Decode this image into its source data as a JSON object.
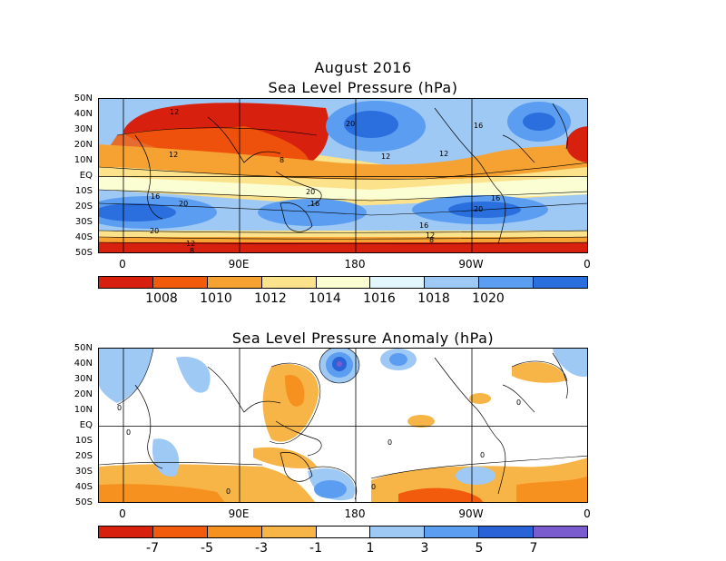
{
  "figure": {
    "title": "August 2016"
  },
  "panels": [
    {
      "id": "slp",
      "title": "Sea Level Pressure (hPa)",
      "lat_labels": [
        "50N",
        "40N",
        "30N",
        "20N",
        "10N",
        "EQ",
        "10S",
        "20S",
        "30S",
        "40S",
        "50S"
      ],
      "lon_labels": [
        "0",
        "90E",
        "180",
        "90W",
        "0"
      ],
      "colorbar": {
        "colors": [
          "#d7200d",
          "#f25a0c",
          "#f6a233",
          "#fde28c",
          "#fbfdd2",
          "#e2f7fd",
          "#9ec9f5",
          "#5b9df0",
          "#2a6fdd"
        ],
        "labels": [
          "1008",
          "1010",
          "1012",
          "1014",
          "1016",
          "1018",
          "1020"
        ]
      },
      "contour_labels": [
        "12",
        "20",
        "12",
        "12",
        "16",
        "8",
        "12",
        "16",
        "20",
        "16",
        "20",
        "20",
        "16",
        "12",
        "8",
        "20",
        "16",
        "12",
        "8"
      ]
    },
    {
      "id": "anom",
      "title": "Sea Level Pressure Anomaly (hPa)",
      "lat_labels": [
        "50N",
        "40N",
        "30N",
        "20N",
        "10N",
        "EQ",
        "10S",
        "20S",
        "30S",
        "40S",
        "50S"
      ],
      "lon_labels": [
        "0",
        "90E",
        "180",
        "90W",
        "0"
      ],
      "colorbar": {
        "colors": [
          "#d7200d",
          "#f25a0c",
          "#f6901e",
          "#f8b547",
          "#ffffff",
          "#9ec9f5",
          "#5b9df0",
          "#2a62d8",
          "#7a5ccf"
        ],
        "labels": [
          "-7",
          "-5",
          "-3",
          "-1",
          "1",
          "3",
          "5",
          "7"
        ]
      },
      "contour_labels": [
        "0",
        "0",
        "0",
        "0",
        "0",
        "0",
        "0"
      ]
    }
  ]
}
